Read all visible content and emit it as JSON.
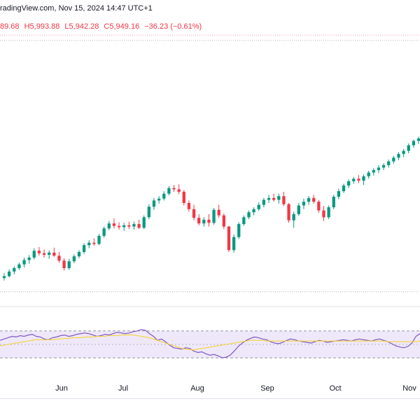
{
  "header": {
    "text": "radingView.com, Nov 15, 2024 14:47 UTC+1"
  },
  "ohlc": {
    "open": "89.68",
    "high": "H5,993.88",
    "low": "L5,942.28",
    "close": "C5,949.16",
    "change": "−36.23 (−0.61%)"
  },
  "colors": {
    "up": "#089981",
    "down": "#f23645",
    "rsi_line": "#7e57c2",
    "rsi_ma": "#f5d33a",
    "rsi_band": "#efe8fa"
  },
  "chart_data": [
    {
      "type": "candlestick",
      "title": "",
      "x_labels": [
        "Jun",
        "Jul",
        "Aug",
        "Sep",
        "Oct",
        "Nov"
      ],
      "reference_lines": [
        {
          "kind": "dotted-red",
          "value": 6017
        },
        {
          "kind": "dotted-gray",
          "value": 6000
        },
        {
          "kind": "dotted-gray",
          "value": 5190
        }
      ],
      "ylim": [
        5160,
        6040
      ],
      "candles": [
        [
          5234,
          5250,
          5226,
          5240
        ],
        [
          5240,
          5262,
          5236,
          5255
        ],
        [
          5255,
          5272,
          5246,
          5266
        ],
        [
          5266,
          5284,
          5260,
          5278
        ],
        [
          5278,
          5300,
          5268,
          5292
        ],
        [
          5292,
          5308,
          5280,
          5300
        ],
        [
          5300,
          5330,
          5294,
          5322
        ],
        [
          5322,
          5334,
          5306,
          5314
        ],
        [
          5314,
          5326,
          5300,
          5309
        ],
        [
          5309,
          5323,
          5296,
          5316
        ],
        [
          5316,
          5332,
          5302,
          5306
        ],
        [
          5306,
          5318,
          5283,
          5290
        ],
        [
          5290,
          5298,
          5258,
          5266
        ],
        [
          5266,
          5296,
          5260,
          5288
        ],
        [
          5288,
          5310,
          5282,
          5304
        ],
        [
          5304,
          5324,
          5298,
          5318
        ],
        [
          5318,
          5346,
          5312,
          5340
        ],
        [
          5340,
          5356,
          5330,
          5348
        ],
        [
          5348,
          5362,
          5338,
          5344
        ],
        [
          5344,
          5376,
          5340,
          5370
        ],
        [
          5370,
          5400,
          5364,
          5394
        ],
        [
          5394,
          5418,
          5388,
          5410
        ],
        [
          5410,
          5426,
          5394,
          5402
        ],
        [
          5402,
          5414,
          5390,
          5398
        ],
        [
          5398,
          5412,
          5386,
          5404
        ],
        [
          5404,
          5416,
          5392,
          5400
        ],
        [
          5400,
          5416,
          5390,
          5408
        ],
        [
          5408,
          5422,
          5392,
          5396
        ],
        [
          5396,
          5436,
          5392,
          5430
        ],
        [
          5430,
          5472,
          5424,
          5464
        ],
        [
          5464,
          5492,
          5454,
          5484
        ],
        [
          5484,
          5498,
          5474,
          5490
        ],
        [
          5490,
          5514,
          5484,
          5506
        ],
        [
          5506,
          5530,
          5500,
          5524
        ],
        [
          5524,
          5534,
          5512,
          5520
        ],
        [
          5520,
          5536,
          5504,
          5512
        ],
        [
          5512,
          5518,
          5468,
          5476
        ],
        [
          5476,
          5484,
          5448,
          5456
        ],
        [
          5456,
          5470,
          5420,
          5428
        ],
        [
          5428,
          5440,
          5404,
          5410
        ],
        [
          5410,
          5430,
          5400,
          5422
        ],
        [
          5422,
          5440,
          5400,
          5412
        ],
        [
          5412,
          5460,
          5406,
          5454
        ],
        [
          5454,
          5470,
          5428,
          5436
        ],
        [
          5436,
          5442,
          5392,
          5400
        ],
        [
          5400,
          5402,
          5318,
          5324
        ],
        [
          5324,
          5374,
          5316,
          5366
        ],
        [
          5366,
          5414,
          5360,
          5408
        ],
        [
          5408,
          5436,
          5402,
          5430
        ],
        [
          5430,
          5452,
          5424,
          5446
        ],
        [
          5446,
          5462,
          5436,
          5456
        ],
        [
          5456,
          5478,
          5450,
          5470
        ],
        [
          5470,
          5492,
          5462,
          5486
        ],
        [
          5486,
          5502,
          5476,
          5492
        ],
        [
          5492,
          5506,
          5480,
          5486
        ],
        [
          5486,
          5506,
          5474,
          5498
        ],
        [
          5498,
          5512,
          5466,
          5472
        ],
        [
          5472,
          5476,
          5412,
          5420
        ],
        [
          5420,
          5448,
          5396,
          5440
        ],
        [
          5440,
          5476,
          5434,
          5468
        ],
        [
          5468,
          5490,
          5456,
          5480
        ],
        [
          5480,
          5498,
          5470,
          5492
        ],
        [
          5492,
          5502,
          5474,
          5480
        ],
        [
          5480,
          5486,
          5444,
          5452
        ],
        [
          5452,
          5466,
          5418,
          5430
        ],
        [
          5430,
          5468,
          5424,
          5462
        ],
        [
          5462,
          5502,
          5456,
          5496
        ],
        [
          5496,
          5522,
          5488,
          5514
        ],
        [
          5514,
          5538,
          5508,
          5532
        ],
        [
          5532,
          5552,
          5524,
          5546
        ],
        [
          5546,
          5560,
          5538,
          5554
        ],
        [
          5554,
          5566,
          5540,
          5548
        ],
        [
          5548,
          5568,
          5534,
          5562
        ],
        [
          5562,
          5580,
          5554,
          5574
        ],
        [
          5574,
          5588,
          5564,
          5582
        ],
        [
          5582,
          5598,
          5572,
          5590
        ],
        [
          5590,
          5604,
          5582,
          5598
        ],
        [
          5598,
          5616,
          5590,
          5610
        ],
        [
          5610,
          5628,
          5602,
          5622
        ],
        [
          5622,
          5640,
          5614,
          5634
        ],
        [
          5634,
          5650,
          5624,
          5644
        ],
        [
          5644,
          5668,
          5636,
          5662
        ],
        [
          5662,
          5680,
          5654,
          5676
        ],
        [
          5676,
          5690,
          5666,
          5684
        ]
      ]
    },
    {
      "type": "line",
      "title": "",
      "ylim": [
        0,
        100
      ],
      "band": [
        30,
        70
      ],
      "midline": 50,
      "series": [
        {
          "values": [
            56,
            58,
            60,
            62,
            61,
            63,
            62,
            64,
            65,
            62,
            61,
            58,
            57,
            60,
            61,
            63,
            64,
            62,
            63,
            65,
            66,
            67,
            66,
            64,
            62,
            63,
            65,
            64,
            66,
            68,
            67,
            66,
            67,
            69,
            70,
            72,
            71,
            66,
            62,
            56,
            58,
            54,
            49,
            45,
            44,
            43,
            45,
            44,
            40,
            38,
            39,
            36,
            34,
            35,
            33,
            30,
            31,
            34,
            40,
            47,
            52,
            56,
            59,
            61,
            60,
            58,
            57,
            54,
            52,
            51,
            53,
            56,
            58,
            57,
            55,
            54,
            53,
            52,
            54,
            56,
            55,
            53,
            54,
            55,
            56,
            57,
            56,
            55,
            57,
            58,
            57,
            56,
            55,
            57,
            58,
            56,
            54,
            51,
            48,
            46,
            45,
            47,
            52,
            62,
            66
          ]
        },
        {
          "values": [
            48,
            49,
            50,
            51,
            52,
            53,
            54,
            55,
            56,
            57,
            57,
            57,
            57,
            57,
            58,
            58,
            59,
            59,
            60,
            60,
            60,
            61,
            61,
            61,
            62,
            62,
            62,
            63,
            63,
            63,
            64,
            64,
            64,
            64,
            63,
            62,
            61,
            60,
            58,
            56,
            54,
            52,
            50,
            48,
            46,
            44,
            43,
            42,
            42,
            43,
            44,
            45,
            46,
            47,
            48,
            49,
            50,
            51,
            52,
            53,
            54,
            55,
            56,
            56,
            56,
            56,
            55,
            55,
            55,
            55,
            55,
            55,
            55,
            55,
            55,
            55,
            55,
            55,
            55,
            55,
            55,
            55,
            55,
            55,
            55,
            55,
            55,
            55,
            55,
            55,
            55,
            55,
            55,
            55,
            55,
            55,
            54,
            54,
            54,
            54,
            54,
            54,
            54,
            54,
            55
          ]
        }
      ]
    }
  ]
}
